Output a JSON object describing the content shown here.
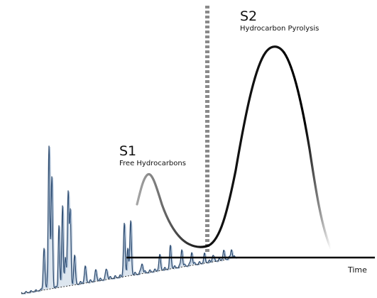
{
  "peaks": {
    "s1": {
      "label": "S1",
      "caption": "Free Hydrocarbons"
    },
    "s2": {
      "label": "S2",
      "caption": "Hydrocarbon Pyrolysis"
    }
  },
  "axis": {
    "x_label": "Time"
  },
  "colors": {
    "pyrogram_curve": "#111111",
    "chromatogram_fill": "#dde6ef",
    "chromatogram_line": "#2c4a6e",
    "divider": "#8a8a8a",
    "axis": "#000000"
  }
}
